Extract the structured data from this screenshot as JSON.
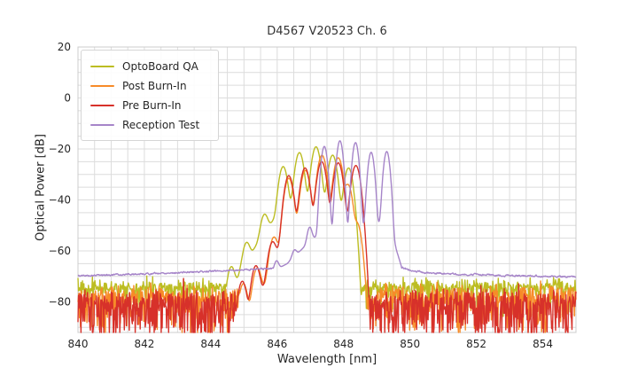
{
  "figure": {
    "title": "D4567 V20523 Ch. 6",
    "xlabel": "Wavelength [nm]",
    "ylabel": "Optical Power [dB]"
  },
  "chart_data": {
    "type": "line",
    "title": "D4567 V20523 Ch. 6",
    "xlabel": "Wavelength [nm]",
    "ylabel": "Optical Power [dB]",
    "xlim": [
      840,
      855
    ],
    "ylim": [
      -92,
      20
    ],
    "xticks": [
      840,
      842,
      844,
      846,
      848,
      850,
      852,
      854
    ],
    "yticks": [
      20,
      0,
      -20,
      -40,
      -60,
      -80
    ],
    "grid": {
      "x_step": 0.5,
      "y_step": 5,
      "color": "#dcdcdc",
      "border_color": "#cccccc",
      "visible": true
    },
    "legend": {
      "position": "upper left"
    },
    "sample_step_nm": 0.015,
    "series": [
      {
        "name": "OptoBoard QA",
        "color": "#bcbd22",
        "seed": 7,
        "mode_sigma_nm": 0.078,
        "modes": [
          [
            844.62,
            -66.5
          ],
          [
            845.08,
            -57.5
          ],
          [
            845.62,
            -46.5
          ],
          [
            846.18,
            -27.0
          ],
          [
            846.67,
            -21.5
          ],
          [
            847.17,
            -19.2
          ],
          [
            847.67,
            -22.5
          ],
          [
            848.15,
            -27.5
          ]
        ],
        "pedestal": [
          [
            844.3,
            -88
          ],
          [
            844.9,
            -68
          ],
          [
            845.5,
            -55
          ],
          [
            846.1,
            -44
          ],
          [
            846.7,
            -40
          ],
          [
            847.2,
            -39
          ],
          [
            847.8,
            -41
          ],
          [
            848.2,
            -50
          ],
          [
            848.38,
            -66
          ],
          [
            848.5,
            -88
          ]
        ],
        "noise": {
          "ranges": [
            [
              840,
              844.5
            ],
            [
              848.5,
              855
            ]
          ],
          "base_points": [
            [
              840,
              -74.5
            ],
            [
              855,
              -74.0
            ]
          ],
          "jitter_db": 1.4,
          "spike_prob": 0.15,
          "spike_depth_db": 10
        }
      },
      {
        "name": "Post Burn-In",
        "color": "#f78b28",
        "seed": 13,
        "mode_sigma_nm": 0.08,
        "modes": [
          [
            844.98,
            -73
          ],
          [
            845.4,
            -67
          ],
          [
            845.9,
            -55
          ],
          [
            846.35,
            -31.5
          ],
          [
            846.85,
            -28.5
          ],
          [
            847.35,
            -22.5
          ],
          [
            847.84,
            -23.5
          ],
          [
            848.13,
            -34
          ],
          [
            848.4,
            -49
          ]
        ],
        "pedestal": [
          [
            844.82,
            -92
          ],
          [
            845.2,
            -82
          ],
          [
            845.7,
            -72
          ],
          [
            846.1,
            -57
          ],
          [
            846.6,
            -48
          ],
          [
            847.15,
            -45
          ],
          [
            847.7,
            -44.5
          ],
          [
            848.2,
            -53
          ],
          [
            848.5,
            -78
          ],
          [
            848.62,
            -92
          ]
        ],
        "noise": {
          "ranges": [
            [
              840,
              844.88
            ],
            [
              848.66,
              855
            ]
          ],
          "base_points": [
            [
              840,
              -78.0
            ],
            [
              855,
              -77.5
            ]
          ],
          "jitter_db": 2.0,
          "spike_prob": 0.45,
          "spike_depth_db": 14
        }
      },
      {
        "name": "Pre Burn-In",
        "color": "#d7312a",
        "seed": 21,
        "mode_sigma_nm": 0.08,
        "modes": [
          [
            844.95,
            -72
          ],
          [
            845.36,
            -66
          ],
          [
            845.86,
            -57
          ],
          [
            846.35,
            -30.5
          ],
          [
            846.84,
            -27.5
          ],
          [
            847.34,
            -25.0
          ],
          [
            847.84,
            -25.5
          ],
          [
            848.37,
            -26.5
          ]
        ],
        "pedestal": [
          [
            844.8,
            -92
          ],
          [
            845.15,
            -84
          ],
          [
            845.6,
            -74
          ],
          [
            846.05,
            -59
          ],
          [
            846.55,
            -49
          ],
          [
            847.1,
            -46
          ],
          [
            847.7,
            -45
          ],
          [
            848.2,
            -49
          ],
          [
            848.48,
            -68
          ],
          [
            848.6,
            -92
          ]
        ],
        "noise": {
          "ranges": [
            [
              840,
              844.86
            ],
            [
              848.64,
              855
            ]
          ],
          "base_points": [
            [
              840,
              -79.5
            ],
            [
              855,
              -79.0
            ]
          ],
          "jitter_db": 2.2,
          "spike_prob": 0.55,
          "spike_depth_db": 15
        }
      },
      {
        "name": "Reception Test",
        "color": "#a685c9",
        "seed": 5,
        "mode_sigma_nm": 0.056,
        "modes": [
          [
            845.98,
            -66.5
          ],
          [
            846.52,
            -63
          ],
          [
            846.98,
            -52
          ],
          [
            847.42,
            -19.0
          ],
          [
            847.89,
            -16.8
          ],
          [
            848.36,
            -17.5
          ],
          [
            848.83,
            -21.3
          ],
          [
            849.3,
            -21.0
          ]
        ],
        "pedestal": [
          [
            845.6,
            -70
          ],
          [
            846.3,
            -65
          ],
          [
            846.85,
            -58
          ],
          [
            847.2,
            -54
          ],
          [
            847.6,
            -52
          ],
          [
            848.4,
            -51
          ],
          [
            849.15,
            -49
          ],
          [
            849.45,
            -53
          ],
          [
            849.6,
            -60
          ],
          [
            849.74,
            -66
          ]
        ],
        "floor_points": [
          [
            840,
            -69.8
          ],
          [
            842,
            -69.0
          ],
          [
            844,
            -68.0
          ],
          [
            845.3,
            -67.2
          ],
          [
            846.2,
            -66.8
          ],
          [
            849.7,
            -66.3
          ],
          [
            850.0,
            -67.6
          ],
          [
            850.6,
            -68.8
          ],
          [
            852,
            -69.3
          ],
          [
            855,
            -70.2
          ]
        ],
        "smooth_jitter_db": 0.55
      }
    ]
  }
}
